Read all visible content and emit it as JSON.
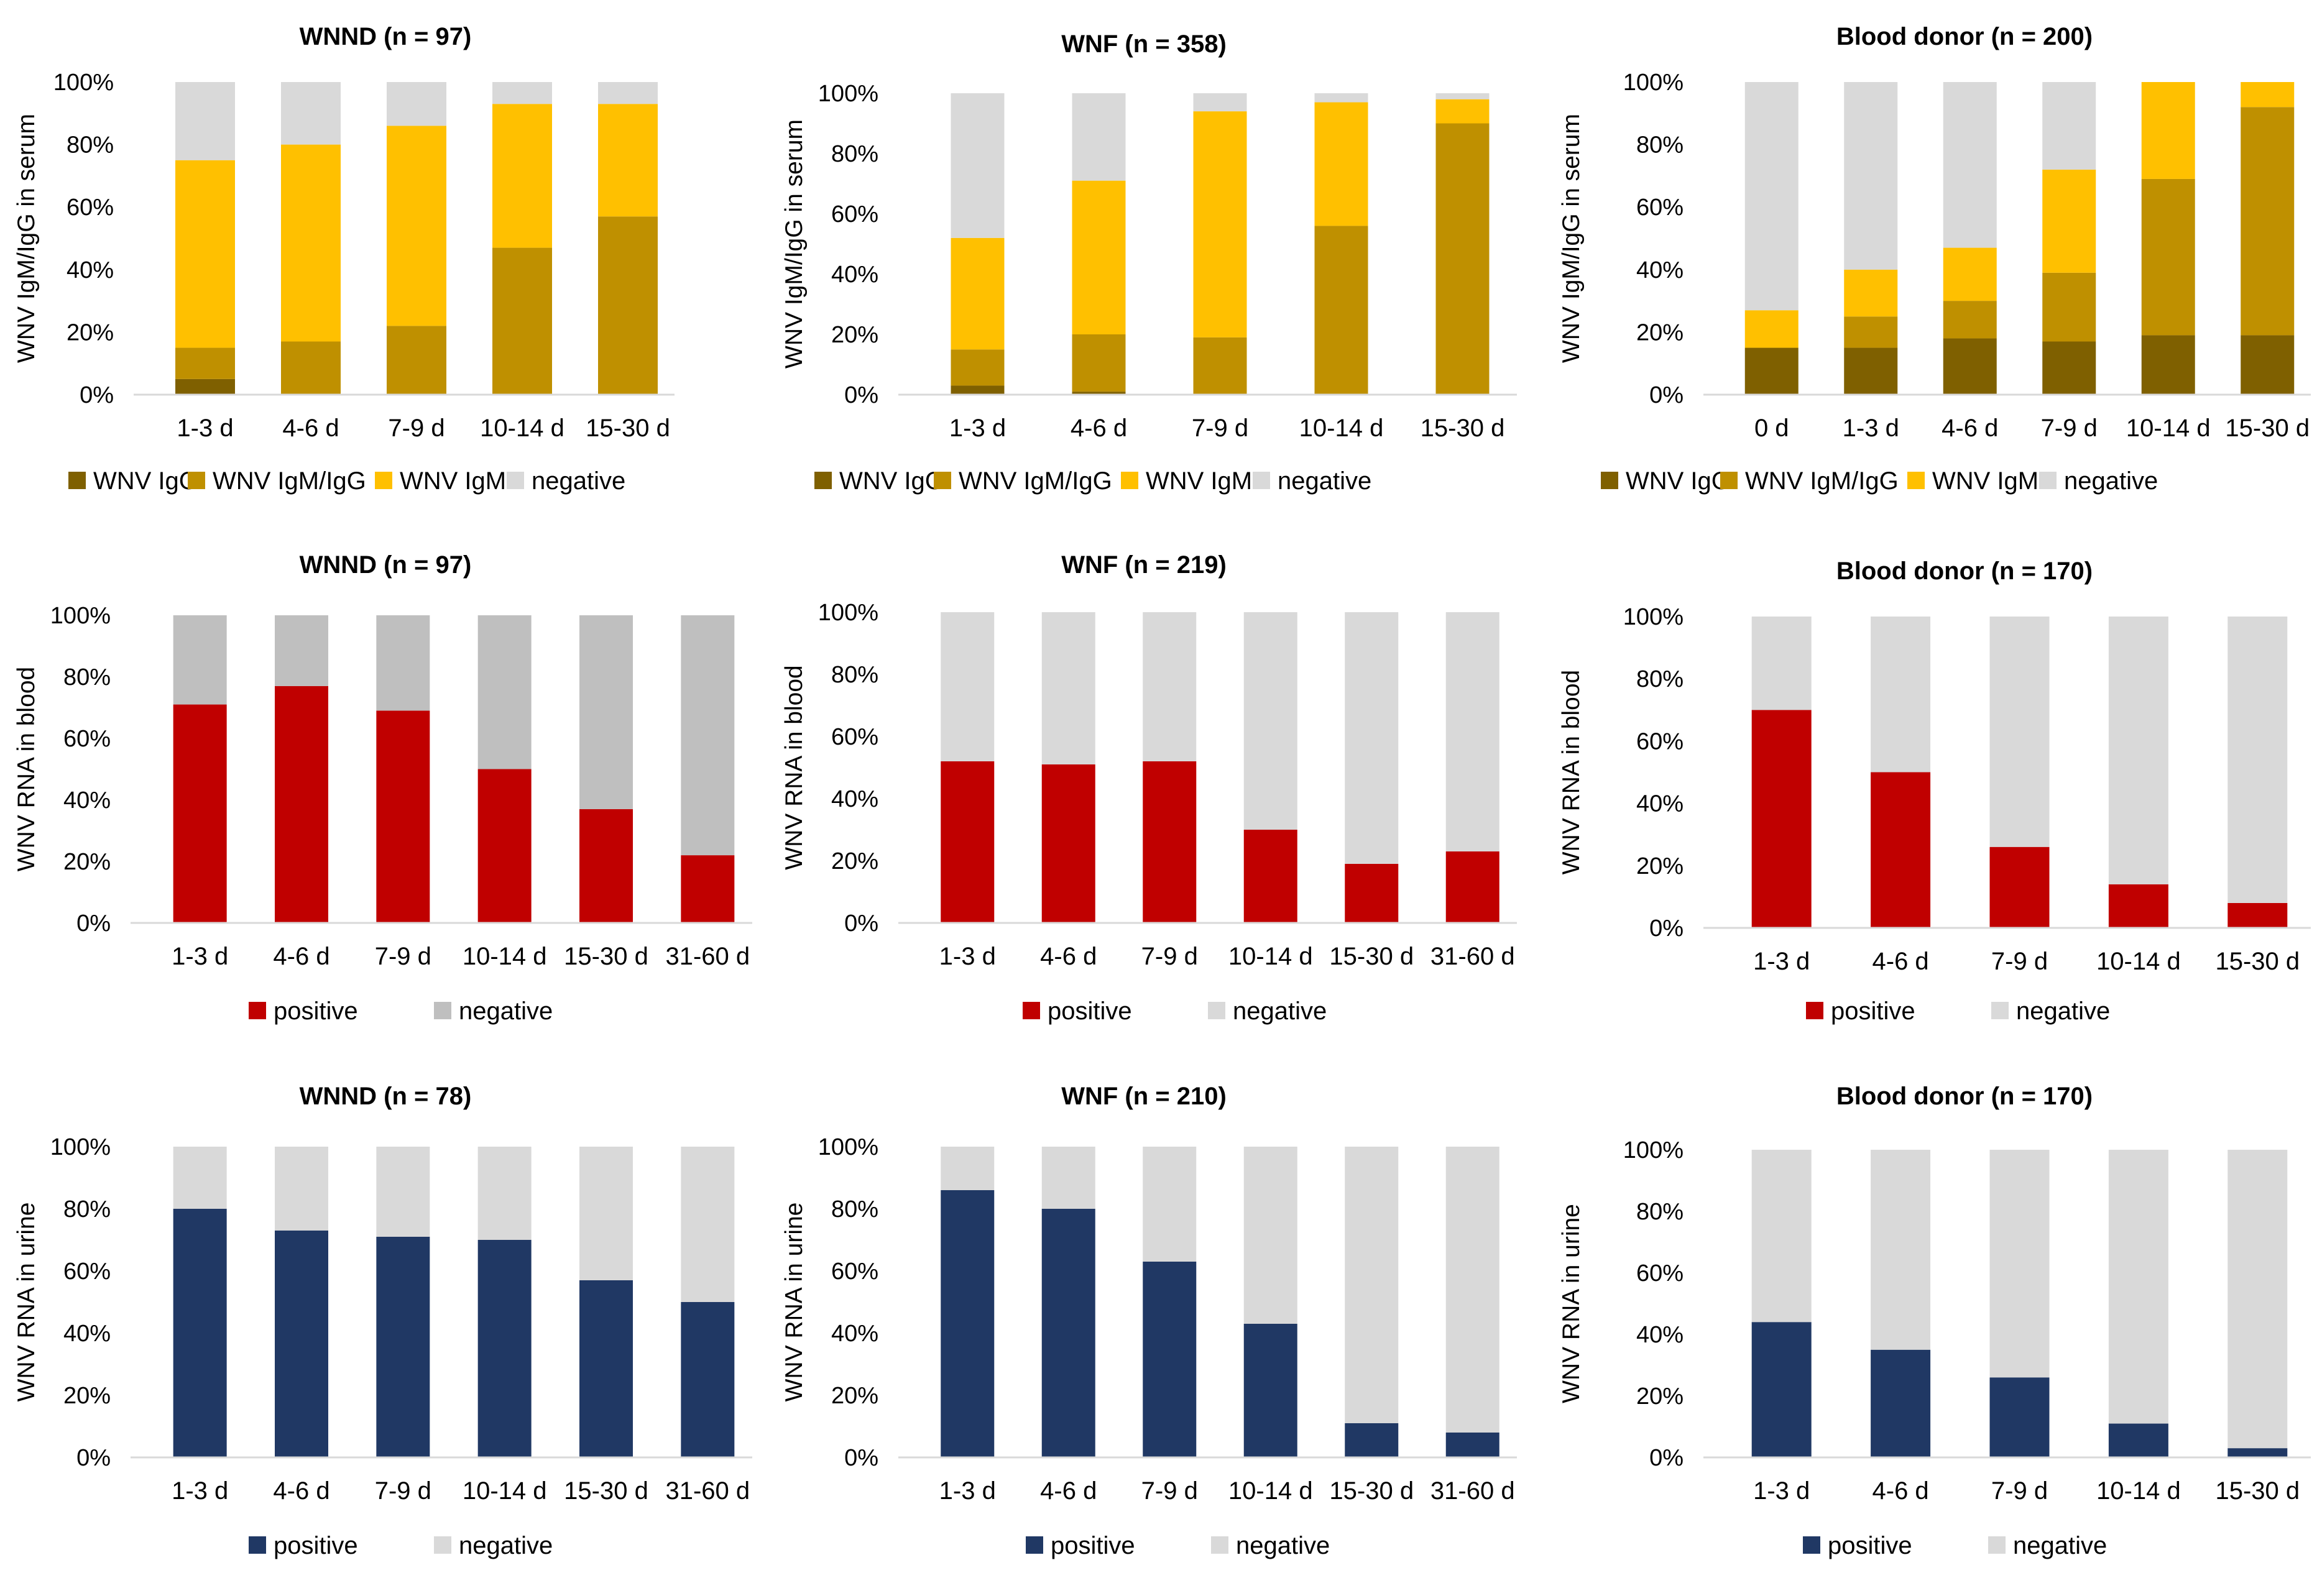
{
  "colors": {
    "igg": "#7f6000",
    "igm_igg": "#bf9000",
    "igm": "#ffc000",
    "neg_light": "#d9d9d9",
    "neg_mid": "#bfbfbf",
    "red": "#c00000",
    "navy": "#203864",
    "axis": "#d9d9d9"
  },
  "chart_data": [
    {
      "type": "bar",
      "stacked": true,
      "title": "WNND (n = 97)",
      "ylabel": "WNV IgM/IgG in serum",
      "ylim": [
        0,
        100
      ],
      "yticks": [
        "0%",
        "20%",
        "40%",
        "60%",
        "80%",
        "100%"
      ],
      "categories": [
        "1-3 d",
        "4-6 d",
        "7-9 d",
        "10-14 d",
        "15-30 d"
      ],
      "series": [
        {
          "name": "WNV IgG",
          "color": "igg",
          "values": [
            5,
            0,
            0,
            0,
            0
          ]
        },
        {
          "name": "WNV IgM/IgG",
          "color": "igm_igg",
          "values": [
            10,
            17,
            22,
            47,
            57
          ]
        },
        {
          "name": "WNV IgM",
          "color": "igm",
          "values": [
            60,
            63,
            64,
            46,
            36
          ]
        },
        {
          "name": "negative",
          "color": "neg_light",
          "values": [
            25,
            20,
            14,
            7,
            7
          ]
        }
      ]
    },
    {
      "type": "bar",
      "stacked": true,
      "title": "WNF (n = 358)",
      "ylabel": "WNV IgM/IgG in serum",
      "ylim": [
        0,
        100
      ],
      "yticks": [
        "0%",
        "20%",
        "40%",
        "60%",
        "80%",
        "100%"
      ],
      "categories": [
        "1-3 d",
        "4-6 d",
        "7-9 d",
        "10-14 d",
        "15-30 d"
      ],
      "series": [
        {
          "name": "WNV IgG",
          "color": "igg",
          "values": [
            3,
            1,
            0,
            0,
            0
          ]
        },
        {
          "name": "WNV IgM/IgG",
          "color": "igm_igg",
          "values": [
            12,
            19,
            19,
            56,
            90
          ]
        },
        {
          "name": "WNV IgM",
          "color": "igm",
          "values": [
            37,
            51,
            75,
            41,
            8
          ]
        },
        {
          "name": "negative",
          "color": "neg_light",
          "values": [
            48,
            29,
            6,
            3,
            2
          ]
        }
      ]
    },
    {
      "type": "bar",
      "stacked": true,
      "title": "Blood donor (n = 200)",
      "ylabel": "WNV IgM/IgG in serum",
      "ylim": [
        0,
        100
      ],
      "yticks": [
        "0%",
        "20%",
        "40%",
        "60%",
        "80%",
        "100%"
      ],
      "categories": [
        "0 d",
        "1-3 d",
        "4-6 d",
        "7-9 d",
        "10-14 d",
        "15-30 d"
      ],
      "series": [
        {
          "name": "WNV IgG",
          "color": "igg",
          "values": [
            15,
            15,
            18,
            17,
            19,
            19
          ]
        },
        {
          "name": "WNV IgM/IgG",
          "color": "igm_igg",
          "values": [
            0,
            10,
            12,
            22,
            50,
            73
          ]
        },
        {
          "name": "WNV IgM",
          "color": "igm",
          "values": [
            12,
            15,
            17,
            33,
            31,
            8
          ]
        },
        {
          "name": "negative",
          "color": "neg_light",
          "values": [
            73,
            60,
            53,
            28,
            0,
            0
          ]
        }
      ]
    },
    {
      "type": "bar",
      "stacked": true,
      "title": "WNND (n = 97)",
      "ylabel": "WNV RNA in blood",
      "ylim": [
        0,
        100
      ],
      "yticks": [
        "0%",
        "20%",
        "40%",
        "60%",
        "80%",
        "100%"
      ],
      "categories": [
        "1-3 d",
        "4-6 d",
        "7-9 d",
        "10-14 d",
        "15-30 d",
        "31-60 d"
      ],
      "series": [
        {
          "name": "positive",
          "color": "red",
          "values": [
            71,
            77,
            69,
            50,
            37,
            22
          ]
        },
        {
          "name": "negative",
          "color": "neg_mid",
          "values": [
            29,
            23,
            31,
            50,
            63,
            78
          ]
        }
      ]
    },
    {
      "type": "bar",
      "stacked": true,
      "title": "WNF (n = 219)",
      "ylabel": "WNV RNA in blood",
      "ylim": [
        0,
        100
      ],
      "yticks": [
        "0%",
        "20%",
        "40%",
        "60%",
        "80%",
        "100%"
      ],
      "categories": [
        "1-3 d",
        "4-6 d",
        "7-9 d",
        "10-14 d",
        "15-30 d",
        "31-60 d"
      ],
      "series": [
        {
          "name": "positive",
          "color": "red",
          "values": [
            52,
            51,
            52,
            30,
            19,
            23
          ]
        },
        {
          "name": "negative",
          "color": "neg_light",
          "values": [
            48,
            49,
            48,
            70,
            81,
            77
          ]
        }
      ]
    },
    {
      "type": "bar",
      "stacked": true,
      "title": "Blood donor (n = 170)",
      "ylabel": "WNV RNA in blood",
      "ylim": [
        0,
        100
      ],
      "yticks": [
        "0%",
        "20%",
        "40%",
        "60%",
        "80%",
        "100%"
      ],
      "categories": [
        "1-3 d",
        "4-6 d",
        "7-9 d",
        "10-14 d",
        "15-30 d"
      ],
      "series": [
        {
          "name": "positive",
          "color": "red",
          "values": [
            70,
            50,
            26,
            14,
            8
          ]
        },
        {
          "name": "negative",
          "color": "neg_light",
          "values": [
            30,
            50,
            74,
            86,
            92
          ]
        }
      ]
    },
    {
      "type": "bar",
      "stacked": true,
      "title": "WNND (n = 78)",
      "ylabel": "WNV RNA in urine",
      "ylim": [
        0,
        100
      ],
      "yticks": [
        "0%",
        "20%",
        "40%",
        "60%",
        "80%",
        "100%"
      ],
      "categories": [
        "1-3 d",
        "4-6 d",
        "7-9 d",
        "10-14 d",
        "15-30 d",
        "31-60 d"
      ],
      "series": [
        {
          "name": "positive",
          "color": "navy",
          "values": [
            80,
            73,
            71,
            70,
            57,
            50
          ]
        },
        {
          "name": "negative",
          "color": "neg_light",
          "values": [
            20,
            27,
            29,
            30,
            43,
            50
          ]
        }
      ]
    },
    {
      "type": "bar",
      "stacked": true,
      "title": "WNF (n = 210)",
      "ylabel": "WNV RNA in urine",
      "ylim": [
        0,
        100
      ],
      "yticks": [
        "0%",
        "20%",
        "40%",
        "60%",
        "80%",
        "100%"
      ],
      "categories": [
        "1-3 d",
        "4-6 d",
        "7-9 d",
        "10-14 d",
        "15-30 d",
        "31-60 d"
      ],
      "series": [
        {
          "name": "positive",
          "color": "navy",
          "values": [
            86,
            80,
            63,
            43,
            11,
            8
          ]
        },
        {
          "name": "negative",
          "color": "neg_light",
          "values": [
            14,
            20,
            37,
            57,
            89,
            92
          ]
        }
      ]
    },
    {
      "type": "bar",
      "stacked": true,
      "title": "Blood donor (n = 170)",
      "ylabel": "WNV RNA in urine",
      "ylim": [
        0,
        100
      ],
      "yticks": [
        "0%",
        "20%",
        "40%",
        "60%",
        "80%",
        "100%"
      ],
      "categories": [
        "1-3 d",
        "4-6 d",
        "7-9 d",
        "10-14 d",
        "15-30 d"
      ],
      "series": [
        {
          "name": "positive",
          "color": "navy",
          "values": [
            44,
            35,
            26,
            11,
            3
          ]
        },
        {
          "name": "negative",
          "color": "neg_light",
          "values": [
            56,
            65,
            74,
            89,
            97
          ]
        }
      ]
    }
  ]
}
